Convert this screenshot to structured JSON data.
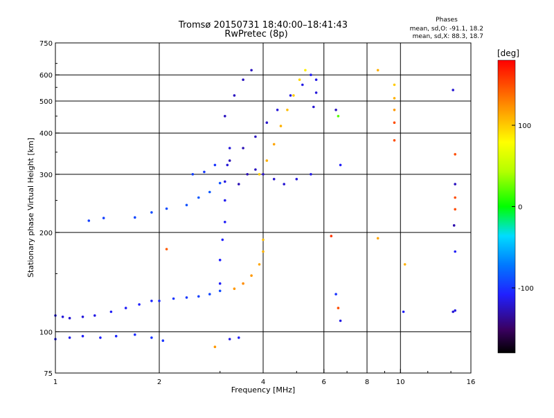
{
  "chart_data": {
    "type": "scatter",
    "title": "Tromsø 20150731 18:40:00–18:41:43",
    "subtitle": "RwPretec (8p)",
    "xlabel": "Frequency [MHz]",
    "ylabel": "Stationary phase Virtual Height [km]",
    "x_scale": "log",
    "y_scale": "log",
    "xlim": [
      1,
      16
    ],
    "ylim": [
      75,
      750
    ],
    "x_ticks": [
      1,
      2,
      4,
      6,
      8,
      10,
      16
    ],
    "x_tick_labels": [
      "1",
      "2",
      "4",
      "6",
      "8",
      "10",
      "16"
    ],
    "x_grid": [
      2,
      4,
      6,
      8,
      10
    ],
    "y_ticks": [
      75,
      100,
      200,
      300,
      400,
      500,
      600,
      750
    ],
    "y_tick_labels": [
      "75",
      "100",
      "200",
      "300",
      "400",
      "500",
      "600",
      "750"
    ],
    "y_grid": [
      100,
      200,
      300,
      400,
      500,
      600
    ],
    "grid": true,
    "stats": {
      "heading": "Phases",
      "line1": "mean, sd,O:  -91.1, 18.2",
      "line2": "mean, sd,X:  88.3, 18.7"
    },
    "colorbar": {
      "unit": "[deg]",
      "range": [
        -180,
        180
      ],
      "ticks": [
        100,
        0,
        -100
      ],
      "tick_labels": [
        "100",
        "0",
        "-100"
      ],
      "colormap": "rainbow",
      "position": "right"
    },
    "clusters": [
      {
        "name": "",
        "points": [
          [
            1.0,
            112,
            -115
          ],
          [
            1.05,
            111,
            -118
          ],
          [
            1.1,
            110,
            -120
          ],
          [
            1.2,
            111,
            -118
          ],
          [
            1.3,
            112,
            -115
          ],
          [
            1.45,
            115,
            -110
          ],
          [
            1.6,
            118,
            -110
          ],
          [
            1.75,
            121,
            -108
          ],
          [
            1.9,
            124,
            -105
          ],
          [
            2.0,
            124,
            -103
          ],
          [
            2.2,
            126,
            -100
          ],
          [
            2.4,
            127,
            -98
          ],
          [
            2.6,
            128,
            -95
          ],
          [
            2.8,
            130,
            -92
          ],
          [
            3.0,
            133,
            -90
          ]
        ]
      },
      {
        "name": "",
        "points": [
          [
            1.0,
            95,
            -110
          ],
          [
            1.1,
            96,
            -112
          ],
          [
            1.2,
            97,
            -110
          ],
          [
            1.35,
            96,
            -108
          ],
          [
            1.5,
            97,
            -105
          ],
          [
            1.7,
            98,
            -103
          ],
          [
            1.9,
            96,
            -100
          ],
          [
            2.05,
            94,
            -100
          ]
        ]
      },
      {
        "name": "",
        "points": [
          [
            1.7,
            222,
            -92
          ],
          [
            1.9,
            230,
            -90
          ],
          [
            2.1,
            236,
            -90
          ],
          [
            2.4,
            242,
            -88
          ],
          [
            2.6,
            255,
            -85
          ],
          [
            2.8,
            265,
            -85
          ],
          [
            3.0,
            282,
            -88
          ]
        ]
      },
      {
        "name": "",
        "points": [
          [
            1.25,
            217,
            -95
          ],
          [
            1.38,
            221,
            -95
          ]
        ]
      },
      {
        "name": "",
        "points": [
          [
            2.5,
            300,
            -95
          ],
          [
            2.7,
            305,
            -98
          ],
          [
            2.9,
            320,
            -100
          ]
        ]
      },
      {
        "name": "",
        "points": [
          [
            3.0,
            140,
            -110
          ],
          [
            3.0,
            165,
            -108
          ],
          [
            3.05,
            190,
            -108
          ],
          [
            3.1,
            215,
            -110
          ],
          [
            3.1,
            250,
            -112
          ],
          [
            3.1,
            285,
            -115
          ],
          [
            3.15,
            320,
            -118
          ],
          [
            3.2,
            360,
            -118
          ]
        ]
      },
      {
        "name": "",
        "points": [
          [
            3.1,
            450,
            -125
          ],
          [
            3.3,
            520,
            -125
          ],
          [
            3.5,
            580,
            -125
          ],
          [
            3.7,
            620,
            -125
          ]
        ]
      },
      {
        "name": "",
        "points": [
          [
            3.2,
            330,
            -128
          ],
          [
            3.5,
            360,
            -128
          ],
          [
            3.8,
            390,
            -125
          ],
          [
            4.1,
            430,
            -122
          ],
          [
            4.4,
            470,
            -118
          ],
          [
            4.8,
            520,
            -115
          ],
          [
            5.2,
            560,
            -115
          ],
          [
            5.5,
            600,
            -112
          ]
        ]
      },
      {
        "name": "",
        "points": [
          [
            3.4,
            280,
            -128
          ],
          [
            3.6,
            300,
            -128
          ],
          [
            3.8,
            310,
            -125
          ],
          [
            4.0,
            300,
            -125
          ],
          [
            4.3,
            290,
            -122
          ],
          [
            4.6,
            280,
            -120
          ],
          [
            5.0,
            290,
            -118
          ],
          [
            5.5,
            300,
            -115
          ]
        ]
      },
      {
        "name": "",
        "points": [
          [
            3.3,
            135,
            120
          ],
          [
            3.5,
            140,
            125
          ],
          [
            3.7,
            148,
            120
          ],
          [
            3.9,
            160,
            115
          ],
          [
            4.0,
            175,
            110
          ],
          [
            4.0,
            190,
            105
          ]
        ]
      },
      {
        "name": "",
        "points": [
          [
            3.9,
            300,
            100
          ],
          [
            4.1,
            330,
            110
          ],
          [
            4.3,
            370,
            115
          ],
          [
            4.5,
            420,
            110
          ],
          [
            4.7,
            470,
            105
          ],
          [
            4.9,
            520,
            100
          ],
          [
            5.1,
            580,
            95
          ],
          [
            5.3,
            620,
            85
          ]
        ]
      },
      {
        "name": "",
        "points": [
          [
            5.6,
            480,
            -120
          ],
          [
            5.7,
            530,
            -118
          ],
          [
            5.7,
            580,
            -115
          ]
        ]
      },
      {
        "name": "",
        "points": [
          [
            6.5,
            470,
            -125
          ],
          [
            6.6,
            450,
            20
          ],
          [
            6.7,
            320,
            -110
          ],
          [
            6.5,
            130,
            -100
          ],
          [
            6.6,
            118,
            150
          ],
          [
            6.7,
            108,
            -115
          ]
        ]
      },
      {
        "name": "",
        "points": [
          [
            8.6,
            620,
            110
          ],
          [
            8.6,
            192,
            115
          ],
          [
            9.6,
            560,
            100
          ],
          [
            9.6,
            510,
            110
          ],
          [
            9.6,
            470,
            120
          ],
          [
            9.6,
            430,
            150
          ],
          [
            9.6,
            380,
            150
          ],
          [
            10.3,
            160,
            110
          ],
          [
            10.2,
            115,
            -110
          ]
        ]
      },
      {
        "name": "",
        "points": [
          [
            14.2,
            540,
            -120
          ],
          [
            14.4,
            345,
            150
          ],
          [
            14.4,
            280,
            -125
          ],
          [
            14.4,
            255,
            150
          ],
          [
            14.4,
            235,
            150
          ],
          [
            14.3,
            210,
            -130
          ],
          [
            14.4,
            175,
            -110
          ],
          [
            14.2,
            115,
            -120
          ],
          [
            14.4,
            116,
            -115
          ]
        ]
      },
      {
        "name": "",
        "points": [
          [
            6.3,
            195,
            160
          ],
          [
            2.1,
            178,
            145
          ],
          [
            2.9,
            90,
            120
          ],
          [
            3.2,
            95,
            -115
          ],
          [
            3.4,
            96,
            -110
          ]
        ]
      }
    ]
  }
}
